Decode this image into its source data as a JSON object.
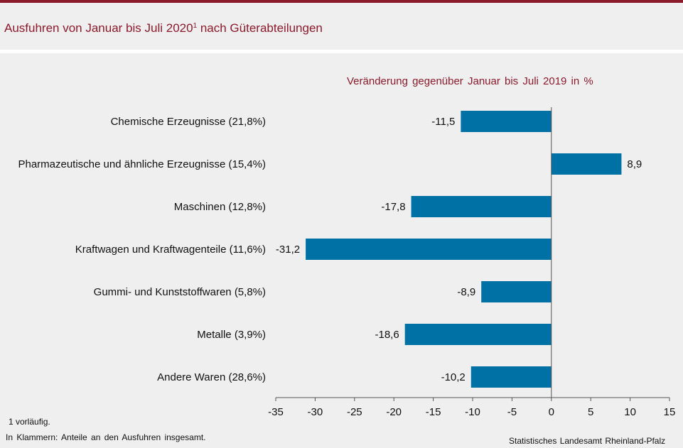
{
  "title": {
    "text": "Ausfuhren von Januar bis Juli 2020",
    "superscript": "1",
    "suffix": " nach Güterabteilungen"
  },
  "footnotes": {
    "note1": "1 vorläufig.",
    "parenthesis": "In Klammern: Anteile an den Ausfuhren insgesamt.",
    "source": "Statistisches Landesamt Rheinland-Pfalz"
  },
  "chart_data": {
    "type": "bar",
    "orientation": "horizontal",
    "title": "Veränderung gegenüber Januar bis Juli 2019 in %",
    "categories": [
      "Chemische Erzeugnisse (21,8%)",
      "Pharmazeutische und ähnliche Erzeugnisse (15,4%)",
      "Maschinen (12,8%)",
      "Kraftwagen und Kraftwagenteile (11,6%)",
      "Gummi- und Kunststoffwaren (5,8%)",
      "Metalle (3,9%)",
      "Andere Waren (28,6%)"
    ],
    "values": [
      -11.5,
      8.9,
      -17.8,
      -31.2,
      -8.9,
      -18.6,
      -10.2
    ],
    "value_labels": [
      "-11,5",
      "8,9",
      "-17,8",
      "-31,2",
      "-8,9",
      "-18,6",
      "-10,2"
    ],
    "xlim": [
      -35,
      15
    ],
    "xticks": [
      -35,
      -30,
      -25,
      -20,
      -15,
      -10,
      -5,
      0,
      5,
      10,
      15
    ],
    "xtick_labels": [
      "-35",
      "-30",
      "-25",
      "-20",
      "-15",
      "-10",
      "-5",
      "0",
      "5",
      "10",
      "15"
    ],
    "grid": false,
    "bar_color": "#0071a4"
  }
}
